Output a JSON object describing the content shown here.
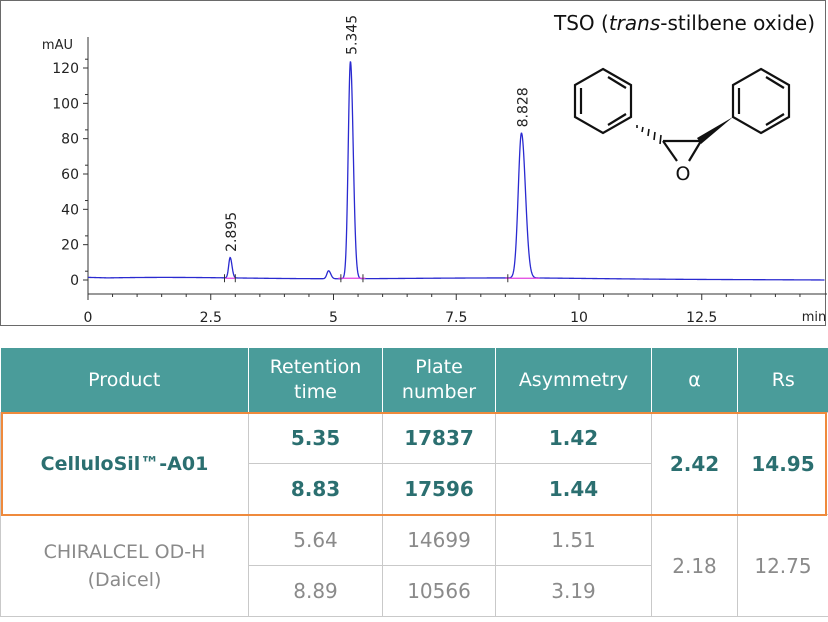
{
  "compound": {
    "prefix": "TSO (",
    "italic": "trans",
    "suffix": "-stilbene oxide)"
  },
  "structure": {
    "o_label": "O"
  },
  "chart_data": {
    "type": "line",
    "title": "TSO (trans-stilbene oxide)",
    "xlabel": "min",
    "ylabel": "mAU",
    "xlim": [
      0,
      15
    ],
    "ylim": [
      -8,
      140
    ],
    "x_ticks": [
      0,
      2.5,
      5,
      7.5,
      10,
      12.5
    ],
    "x_tick_labels": [
      "0",
      "2.5",
      "5",
      "7.5",
      "10",
      "12.5"
    ],
    "y_ticks": [
      0,
      20,
      40,
      60,
      80,
      100,
      120
    ],
    "y_tick_labels": [
      "0",
      "20",
      "40",
      "60",
      "80",
      "100",
      "120"
    ],
    "grid": false,
    "baseline": 1,
    "peaks": [
      {
        "label": "2.895",
        "rt": 2.895,
        "height": 11.5,
        "width": 0.03
      },
      {
        "label": "",
        "rt": 4.9,
        "height": 4.5,
        "width": 0.035
      },
      {
        "label": "5.345",
        "rt": 5.345,
        "height": 123,
        "width": 0.045
      },
      {
        "label": "8.828",
        "rt": 8.828,
        "height": 82,
        "width": 0.065
      }
    ],
    "series": [
      {
        "color": "#2a2ad0"
      },
      {
        "color": "#e040e0"
      }
    ]
  },
  "table": {
    "headers": [
      {
        "line1": "Product",
        "line2": ""
      },
      {
        "line1": "Retention",
        "line2": "time"
      },
      {
        "line1": "Plate",
        "line2": "number"
      },
      {
        "line1": "Asymmetry",
        "line2": ""
      },
      {
        "line1": "α",
        "line2": ""
      },
      {
        "line1": "Rs",
        "line2": ""
      }
    ],
    "products": [
      {
        "name": "CelluloSil™-A01",
        "name2": "",
        "rows": [
          {
            "rt": "5.35",
            "plates": "17837",
            "asym": "1.42"
          },
          {
            "rt": "8.83",
            "plates": "17596",
            "asym": "1.44"
          }
        ],
        "alpha": "2.42",
        "rs": "14.95"
      },
      {
        "name": "CHIRALCEL OD-H",
        "name2": "(Daicel)",
        "rows": [
          {
            "rt": "5.64",
            "plates": "14699",
            "asym": "1.51"
          },
          {
            "rt": "8.89",
            "plates": "10566",
            "asym": "3.19"
          }
        ],
        "alpha": "2.18",
        "rs": "12.75"
      }
    ],
    "header_color": "#4a9c9a",
    "highlight_color": "#ef8a3c"
  }
}
